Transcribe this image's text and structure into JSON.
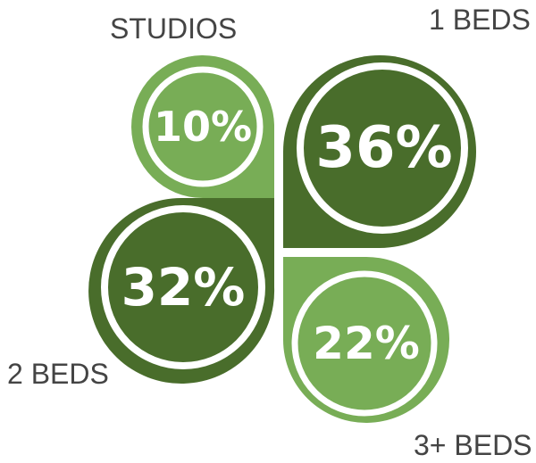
{
  "colors": {
    "light_green": "#78ad56",
    "dark_green": "#496d2b",
    "ring": "#ffffff",
    "label_text": "#444444"
  },
  "chart_data": {
    "type": "pie",
    "categories": [
      "STUDIOS",
      "1 BEDS",
      "2 BEDS",
      "3+ BEDS"
    ],
    "values": [
      10,
      36,
      32,
      22
    ],
    "value_labels": [
      "10%",
      "36%",
      "32%",
      "22%"
    ]
  }
}
